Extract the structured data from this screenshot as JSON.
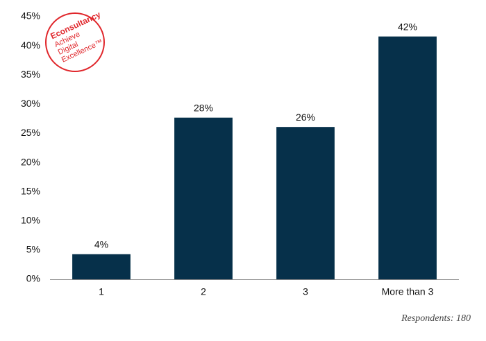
{
  "chart_data": {
    "type": "bar",
    "categories": [
      "1",
      "2",
      "3",
      "More than 3"
    ],
    "values": [
      4.3,
      27.7,
      26.1,
      41.6
    ],
    "value_labels": [
      "4%",
      "28%",
      "26%",
      "42%"
    ],
    "color": "#06304a",
    "ylim": [
      0,
      45
    ],
    "yticks": [
      {
        "value": 0,
        "label": "0%"
      },
      {
        "value": 5,
        "label": "5%"
      },
      {
        "value": 10,
        "label": "10%"
      },
      {
        "value": 15,
        "label": "15%"
      },
      {
        "value": 20,
        "label": "20%"
      },
      {
        "value": 25,
        "label": "25%"
      },
      {
        "value": 30,
        "label": "30%"
      },
      {
        "value": 35,
        "label": "35%"
      },
      {
        "value": 40,
        "label": "40%"
      },
      {
        "value": 45,
        "label": "45%"
      }
    ],
    "grid": false,
    "note": "Respondents: 180",
    "logo": [
      "Econsultancy",
      "Achieve",
      "Digital",
      "Excellence™"
    ]
  }
}
